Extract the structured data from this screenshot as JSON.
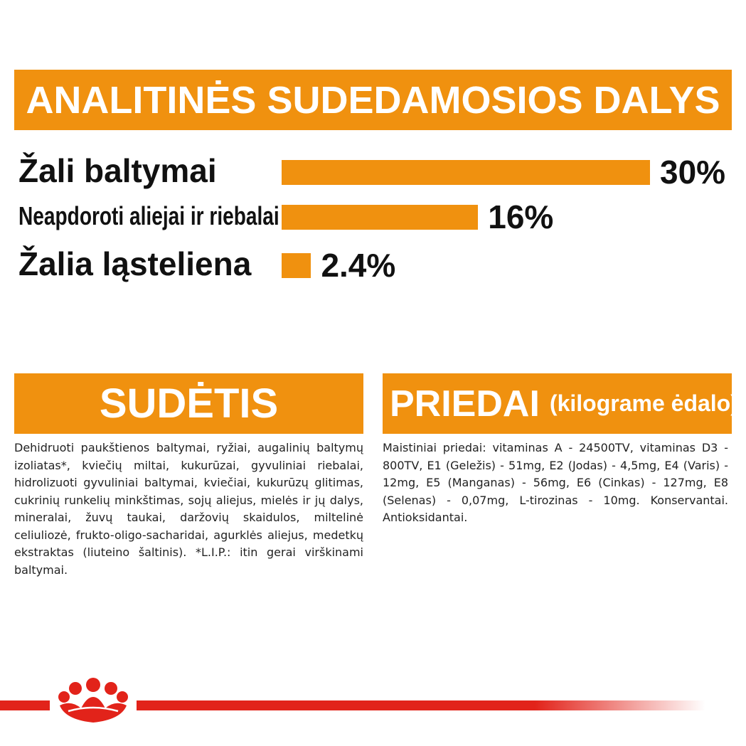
{
  "main_header": {
    "title": "ANALITINĖS SUDEDAMOSIOS DALYS"
  },
  "chart_data": {
    "type": "bar",
    "orientation": "horizontal",
    "categories": [
      "Žali baltymai",
      "Neapdoroti aliejai ir riebalai",
      "Žalia ląstelienа"
    ],
    "values": [
      30,
      16,
      2.4
    ],
    "value_labels": [
      "30%",
      "16%",
      "2.4%"
    ],
    "xlim": [
      0,
      30
    ],
    "grid": false,
    "colors": {
      "bar": "#f0910f"
    }
  },
  "sudetis": {
    "title": "SUDĖTIS",
    "text": "Dehidruoti paukštienos baltymai, ryžiai, augalinių baltymų izoliatas*, kviečių miltai, kukurūzai, gyvuliniai riebalai, hidrolizuoti gyvuliniai baltymai, kviečiai, kukurūzų glitimas, cukrinių runkelių minkštimas, sojų aliejus, mielės ir jų dalys, mineralai, žuvų taukai, daržovių skaidulos, miltelinė celiuliozė, frukto-oligo-sacharidai, agurklės aliejus, medetkų ekstraktas (liuteino šaltinis). *L.I.P.: itin gerai virškinami baltymai."
  },
  "priedai": {
    "title": "PRIEDAI",
    "subtitle": "(kilograme ėdalo)",
    "text": "Maistiniai priedai: vitaminas A - 24500TV, vitaminas D3 - 800TV, E1 (Geležis) - 51mg, E2 (Jodas) - 4,5mg, E4 (Varis) - 12mg, E5 (Manganas) - 56mg, E6 (Cinkas) - 127mg, E8 (Selenas) - 0,07mg, L-tirozinas - 10mg. Konservantai. Antioksidantai."
  },
  "brand": {
    "logo": "crown-icon",
    "accent": "#e2231a",
    "orange": "#f0910f"
  }
}
